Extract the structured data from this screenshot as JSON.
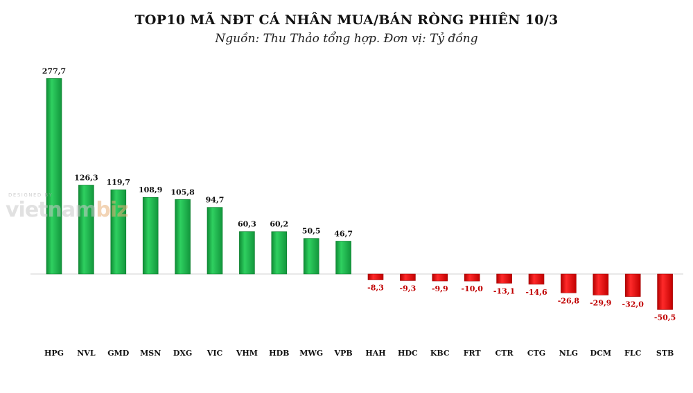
{
  "chart_data": {
    "type": "bar",
    "title": "TOP10 MÃ NĐT CÁ NHÂN MUA/BÁN RÒNG PHIÊN 10/3",
    "subtitle": "Nguồn: Thu Thảo tổng hợp. Đơn vị: Tỷ đồng",
    "xlabel": "",
    "ylabel": "",
    "categories": [
      "HPG",
      "NVL",
      "GMD",
      "MSN",
      "DXG",
      "VIC",
      "VHM",
      "HDB",
      "MWG",
      "VPB",
      "HAH",
      "HDC",
      "KBC",
      "FRT",
      "CTR",
      "CTG",
      "NLG",
      "DCM",
      "FLC",
      "STB"
    ],
    "values": [
      277.7,
      126.3,
      119.7,
      108.9,
      105.8,
      94.7,
      60.3,
      60.2,
      50.5,
      46.7,
      -8.3,
      -9.3,
      -9.9,
      -10.0,
      -13.1,
      -14.6,
      -26.8,
      -29.9,
      -32.0,
      -50.5
    ],
    "labels": [
      "277,7",
      "126,3",
      "119,7",
      "108,9",
      "105,8",
      "94,7",
      "60,3",
      "60,2",
      "50,5",
      "46,7",
      "-8,3",
      "-9,3",
      "-9,9",
      "-10,0",
      "-13,1",
      "-14,6",
      "-26,8",
      "-29,9",
      "-32,0",
      "-50,5"
    ],
    "ylim": [
      -60,
      290
    ],
    "grid": false,
    "colors": {
      "positive": "#1fb24a",
      "negative": "#e01414",
      "positive_edge": "#0e7a2e",
      "negative_edge": "#a00000"
    }
  },
  "watermark": {
    "small": "DESIGNED BY",
    "brand": "vietnam",
    "brand_accent": "biz"
  }
}
